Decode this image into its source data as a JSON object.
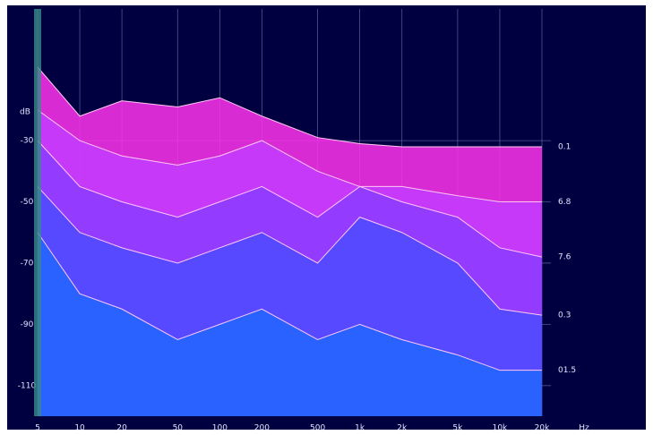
{
  "chart_data": {
    "type": "waterfall",
    "y_label": "dB",
    "x_label": "Hz",
    "log_x": true,
    "grid": true,
    "x": [
      5,
      10,
      20,
      50,
      100,
      200,
      500,
      1000,
      2000,
      5000,
      10000,
      20000
    ],
    "xlim": [
      5,
      20000
    ],
    "xticks": [
      5,
      10,
      20,
      50,
      100,
      200,
      500,
      {
        "value": 1000,
        "label": "1k"
      },
      {
        "value": 2000,
        "label": "2k"
      },
      {
        "value": 5000,
        "label": "5k"
      },
      {
        "value": 10000,
        "label": "10k"
      },
      {
        "value": 20000,
        "label": "20k"
      }
    ],
    "ylim": [
      -120,
      13
    ],
    "yticks": [
      -30,
      -50,
      -70,
      -90,
      -110
    ],
    "series": [
      {
        "name": "0.1",
        "color": "#ff33ee",
        "values": [
          -6,
          -22,
          -17,
          -19,
          -16,
          -22,
          -29,
          -31,
          -32,
          -32,
          -32,
          -32
        ]
      },
      {
        "name": "6.8",
        "color": "#c23cff",
        "values": [
          -20,
          -30,
          -35,
          -38,
          -35,
          -30,
          -40,
          -45,
          -45,
          -48,
          -50,
          -50
        ]
      },
      {
        "name": "7.6",
        "color": "#8a3cff",
        "values": [
          -30,
          -45,
          -50,
          -55,
          -50,
          -45,
          -55,
          -45,
          -50,
          -55,
          -65,
          -68
        ]
      },
      {
        "name": "0.3",
        "color": "#4c4cff",
        "values": [
          -45,
          -60,
          -65,
          -70,
          -65,
          -60,
          -70,
          -55,
          -60,
          -70,
          -85,
          -87
        ]
      },
      {
        "name": "01.5",
        "color": "#2266ff",
        "values": [
          -60,
          -80,
          -85,
          -95,
          -90,
          -85,
          -95,
          -90,
          -95,
          -100,
          -105,
          -105
        ]
      }
    ]
  }
}
